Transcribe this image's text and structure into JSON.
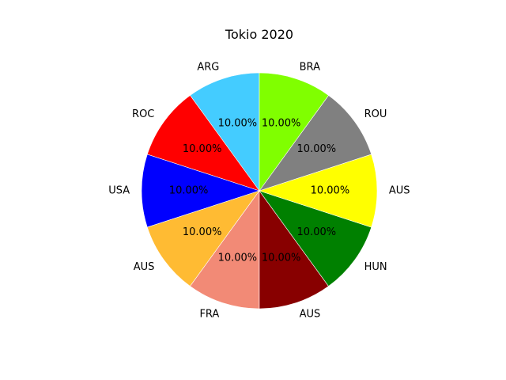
{
  "chart_data": {
    "type": "pie",
    "title": "Tokio 2020",
    "labels": [
      "ARG",
      "ROC",
      "USA",
      "AUS",
      "FRA",
      "AUS",
      "HUN",
      "AUS",
      "ROU",
      "BRA"
    ],
    "values": [
      10,
      10,
      10,
      10,
      10,
      10,
      10,
      10,
      10,
      10
    ],
    "percent_labels": [
      "10.00%",
      "10.00%",
      "10.00%",
      "10.00%",
      "10.00%",
      "10.00%",
      "10.00%",
      "10.00%",
      "10.00%",
      "10.00%"
    ],
    "colors": [
      "#44ccff",
      "#ff0000",
      "#0000ff",
      "#ffbb33",
      "#f28a76",
      "#880000",
      "#008000",
      "#ffff00",
      "#808080",
      "#80ff00"
    ],
    "start_angle_deg": 90,
    "direction": "counterclockwise",
    "legend": "none"
  }
}
